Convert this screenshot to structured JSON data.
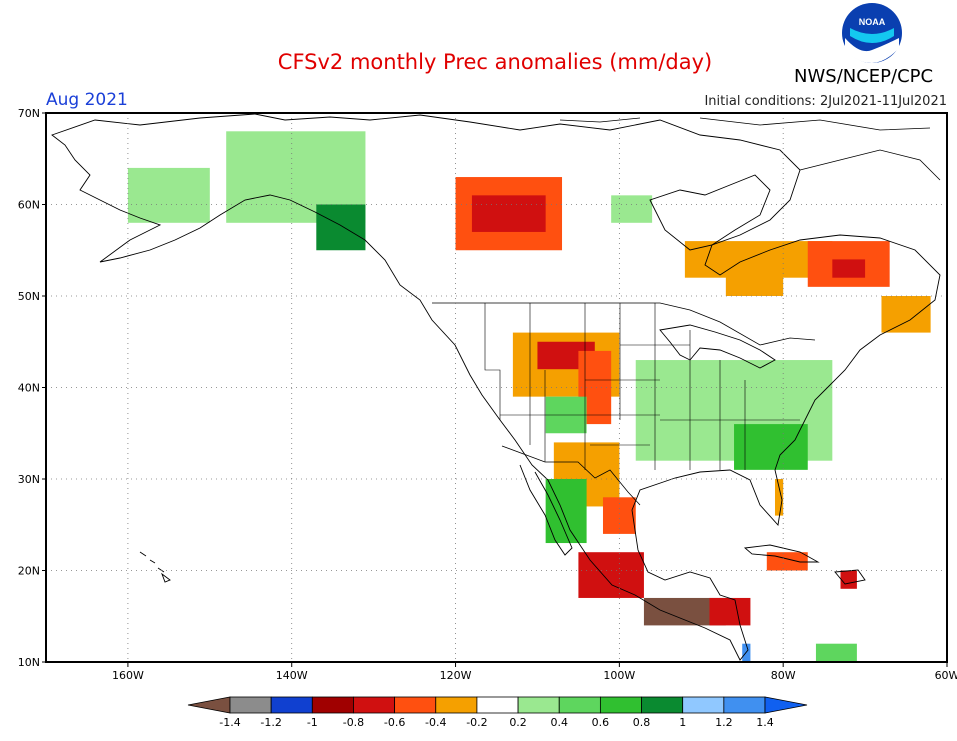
{
  "header": {
    "title": "CFSv2 monthly Prec anomalies (mm/day)",
    "month": "Aug 2021",
    "initial_conditions": "Initial conditions: 2Jul2021-11Jul2021",
    "organization": "NWS/NCEP/CPC",
    "logo_text": "NOAA"
  },
  "colors": {
    "dry_extreme": "#7a5040",
    "very_dry": "#b01010",
    "dry": "#e01010",
    "dry_moderate": "#ff5010",
    "slightly_dry": "#f5a000",
    "slightly_wet": "#9ae890",
    "wet": "#30c030",
    "very_wet": "#0a8a30",
    "wettest": "#1060f0"
  },
  "chart_data": {
    "type": "heatmap",
    "title": "CFSv2 monthly Prec anomalies (mm/day)",
    "unit": "mm/day",
    "x_axis": {
      "range": [
        -170,
        -60
      ],
      "ticks": [
        -160,
        -140,
        -120,
        -100,
        -80,
        -60
      ],
      "tick_labels": [
        "160W",
        "140W",
        "120W",
        "100W",
        "80W",
        "60W"
      ]
    },
    "y_axis": {
      "range": [
        10,
        70
      ],
      "ticks": [
        10,
        20,
        30,
        40,
        50,
        60,
        70
      ],
      "tick_labels": [
        "10N",
        "20N",
        "30N",
        "40N",
        "50N",
        "60N",
        "70N"
      ]
    },
    "grid": true,
    "colorbar": {
      "levels": [
        -1.4,
        -1.2,
        -1,
        -0.8,
        -0.6,
        -0.4,
        -0.2,
        0.2,
        0.4,
        0.6,
        0.8,
        1,
        1.2,
        1.4
      ],
      "labels": [
        "-1.4",
        "-1.2",
        "-1",
        "-0.8",
        "-0.6",
        "-0.4",
        "-0.2",
        "0.2",
        "0.4",
        "0.6",
        "0.8",
        "1",
        "1.2",
        "1.4"
      ],
      "colors": [
        "#7a5040",
        "#8c8c8c",
        "#1040d0",
        "#a00000",
        "#d01010",
        "#ff5010",
        "#f5a000",
        "#ffffff",
        "#9ae890",
        "#5ed65e",
        "#30c030",
        "#0a8a30",
        "#90c8ff",
        "#4090f0",
        "#1060f0"
      ]
    },
    "regions": [
      {
        "lon": [
          -148,
          -131
        ],
        "lat": [
          58,
          68
        ],
        "value": 0.3
      },
      {
        "lon": [
          -160,
          -150
        ],
        "lat": [
          58,
          64
        ],
        "value": 0.3
      },
      {
        "lon": [
          -137,
          -131
        ],
        "lat": [
          55,
          60
        ],
        "value": 0.8
      },
      {
        "lon": [
          -120,
          -107
        ],
        "lat": [
          55,
          63
        ],
        "value": -0.5
      },
      {
        "lon": [
          -118,
          -109
        ],
        "lat": [
          57,
          61
        ],
        "value": -0.7
      },
      {
        "lon": [
          -101,
          -96
        ],
        "lat": [
          58,
          61
        ],
        "value": 0.3
      },
      {
        "lon": [
          -92,
          -74
        ],
        "lat": [
          52,
          56
        ],
        "value": -0.3
      },
      {
        "lon": [
          -87,
          -80
        ],
        "lat": [
          50,
          53
        ],
        "value": -0.4
      },
      {
        "lon": [
          -77,
          -67
        ],
        "lat": [
          51,
          56
        ],
        "value": -0.5
      },
      {
        "lon": [
          -74,
          -70
        ],
        "lat": [
          52,
          54
        ],
        "value": -0.7
      },
      {
        "lon": [
          -68,
          -62
        ],
        "lat": [
          46,
          50
        ],
        "value": -0.3
      },
      {
        "lon": [
          -113,
          -100
        ],
        "lat": [
          39,
          46
        ],
        "value": -0.3
      },
      {
        "lon": [
          -110,
          -103
        ],
        "lat": [
          42,
          45
        ],
        "value": -0.7
      },
      {
        "lon": [
          -105,
          -101
        ],
        "lat": [
          36,
          44
        ],
        "value": -0.6
      },
      {
        "lon": [
          -109,
          -104
        ],
        "lat": [
          35,
          39
        ],
        "value": 0.5
      },
      {
        "lon": [
          -108,
          -100
        ],
        "lat": [
          27,
          34
        ],
        "value": -0.3
      },
      {
        "lon": [
          -98,
          -74
        ],
        "lat": [
          32,
          43
        ],
        "value": 0.3
      },
      {
        "lon": [
          -86,
          -77
        ],
        "lat": [
          31,
          36
        ],
        "value": 0.6
      },
      {
        "lon": [
          -81,
          -80
        ],
        "lat": [
          26,
          30
        ],
        "value": -0.3
      },
      {
        "lon": [
          -109,
          -104
        ],
        "lat": [
          23,
          30
        ],
        "value": 0.6
      },
      {
        "lon": [
          -105,
          -97
        ],
        "lat": [
          17,
          22
        ],
        "value": -0.8
      },
      {
        "lon": [
          -102,
          -98
        ],
        "lat": [
          24,
          28
        ],
        "value": -0.6
      },
      {
        "lon": [
          -97,
          -87
        ],
        "lat": [
          14,
          17
        ],
        "value": -1.5
      },
      {
        "lon": [
          -89,
          -84
        ],
        "lat": [
          14,
          17
        ],
        "value": -0.7
      },
      {
        "lon": [
          -82,
          -77
        ],
        "lat": [
          20,
          22
        ],
        "value": -0.6
      },
      {
        "lon": [
          -73,
          -71
        ],
        "lat": [
          18,
          20
        ],
        "value": -0.8
      },
      {
        "lon": [
          -85,
          -84
        ],
        "lat": [
          10,
          12
        ],
        "value": 1.3
      },
      {
        "lon": [
          -76,
          -71
        ],
        "lat": [
          10,
          12
        ],
        "value": 0.4
      }
    ]
  }
}
